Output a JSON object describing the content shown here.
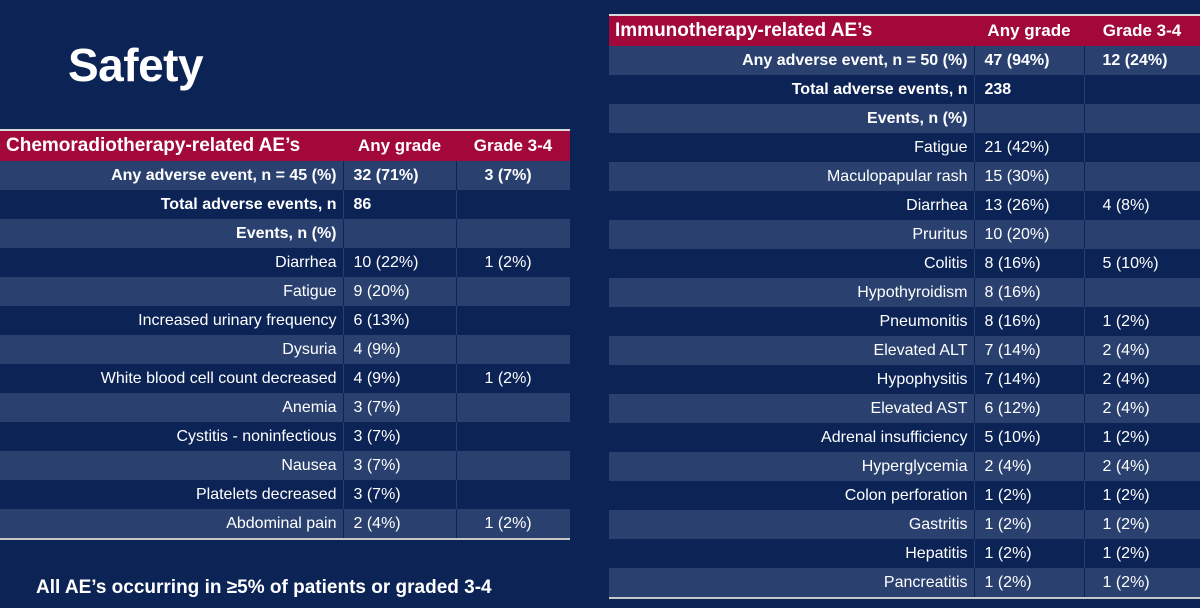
{
  "title": "Safety",
  "footnote": "All AE’s occurring in ≥5% of patients or graded 3-4",
  "chemo_table": {
    "headers": [
      "Chemoradiotherapy-related AE’s",
      "Any grade",
      "Grade 3-4"
    ],
    "rows": [
      {
        "label": "Any adverse event, n = 45 (%)",
        "any": "32 (71%)",
        "grade34": "3 (7%)",
        "bold": true
      },
      {
        "label": "Total adverse events, n",
        "any": "86",
        "grade34": "",
        "bold": true
      },
      {
        "label": "Events, n (%)",
        "any": "",
        "grade34": "",
        "bold": true
      },
      {
        "label": "Diarrhea",
        "any": "10 (22%)",
        "grade34": "1 (2%)"
      },
      {
        "label": "Fatigue",
        "any": "9 (20%)",
        "grade34": ""
      },
      {
        "label": "Increased urinary frequency",
        "any": "6 (13%)",
        "grade34": ""
      },
      {
        "label": "Dysuria",
        "any": "4 (9%)",
        "grade34": ""
      },
      {
        "label": "White blood cell count decreased",
        "any": "4 (9%)",
        "grade34": "1 (2%)"
      },
      {
        "label": "Anemia",
        "any": "3 (7%)",
        "grade34": ""
      },
      {
        "label": "Cystitis - noninfectious",
        "any": "3 (7%)",
        "grade34": ""
      },
      {
        "label": "Nausea",
        "any": "3 (7%)",
        "grade34": ""
      },
      {
        "label": "Platelets decreased",
        "any": "3 (7%)",
        "grade34": ""
      },
      {
        "label": "Abdominal pain",
        "any": "2 (4%)",
        "grade34": "1 (2%)"
      }
    ]
  },
  "immuno_table": {
    "headers": [
      "Immunotherapy-related AE’s",
      "Any grade",
      "Grade 3-4"
    ],
    "rows": [
      {
        "label": "Any adverse event, n = 50 (%)",
        "any": "47 (94%)",
        "grade34": "12 (24%)",
        "bold": true
      },
      {
        "label": "Total adverse events, n",
        "any": "238",
        "grade34": "",
        "bold": true
      },
      {
        "label": "Events, n (%)",
        "any": "",
        "grade34": "",
        "bold": true
      },
      {
        "label": "Fatigue",
        "any": "21 (42%)",
        "grade34": ""
      },
      {
        "label": "Maculopapular rash",
        "any": "15 (30%)",
        "grade34": ""
      },
      {
        "label": "Diarrhea",
        "any": "13 (26%)",
        "grade34": "4 (8%)"
      },
      {
        "label": "Pruritus",
        "any": "10 (20%)",
        "grade34": ""
      },
      {
        "label": "Colitis",
        "any": "8 (16%)",
        "grade34": "5 (10%)"
      },
      {
        "label": "Hypothyroidism",
        "any": "8 (16%)",
        "grade34": ""
      },
      {
        "label": "Pneumonitis",
        "any": "8 (16%)",
        "grade34": "1 (2%)"
      },
      {
        "label": "Elevated ALT",
        "any": "7 (14%)",
        "grade34": "2 (4%)"
      },
      {
        "label": "Hypophysitis",
        "any": "7 (14%)",
        "grade34": "2 (4%)"
      },
      {
        "label": "Elevated AST",
        "any": "6 (12%)",
        "grade34": "2 (4%)"
      },
      {
        "label": "Adrenal insufficiency",
        "any": "5 (10%)",
        "grade34": "1 (2%)"
      },
      {
        "label": "Hyperglycemia",
        "any": "2 (4%)",
        "grade34": "2 (4%)"
      },
      {
        "label": "Colon perforation",
        "any": "1 (2%)",
        "grade34": "1 (2%)"
      },
      {
        "label": "Gastritis",
        "any": "1 (2%)",
        "grade34": "1 (2%)"
      },
      {
        "label": "Hepatitis",
        "any": "1 (2%)",
        "grade34": "1 (2%)"
      },
      {
        "label": "Pancreatitis",
        "any": "1 (2%)",
        "grade34": "1 (2%)"
      }
    ]
  },
  "colors": {
    "background": "#0c2356",
    "band": "#2a4170",
    "header": "#a3083a",
    "text": "#ffffff"
  }
}
